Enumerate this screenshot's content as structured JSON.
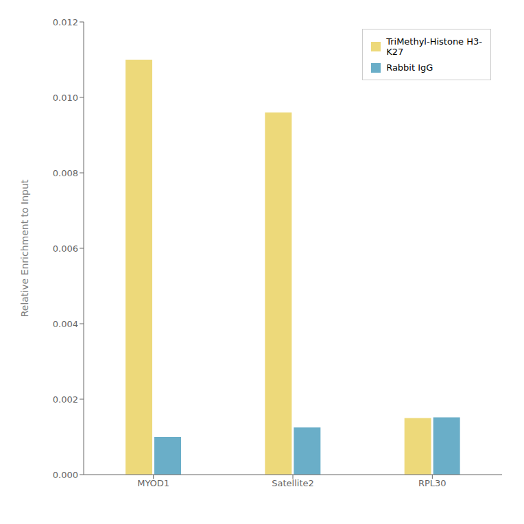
{
  "chart_data": {
    "type": "bar",
    "ylabel": "Relative Enrichment to Input",
    "categories": [
      "MYOD1",
      "Satellite2",
      "RPL30"
    ],
    "series": [
      {
        "name": "TriMethyl-Histone H3-\nK27",
        "color": "#EDD97A",
        "values": [
          0.011,
          0.0096,
          0.0015
        ]
      },
      {
        "name": "Rabbit IgG",
        "color": "#6AAEC8",
        "values": [
          0.001,
          0.00125,
          0.00152
        ]
      }
    ],
    "ylim": [
      0,
      0.012
    ],
    "yticks": [
      {
        "value": 0,
        "label": "0.000"
      },
      {
        "value": 0.002,
        "label": "0.002"
      },
      {
        "value": 0.004,
        "label": "0.004"
      },
      {
        "value": 0.006,
        "label": "0.006"
      },
      {
        "value": 0.008,
        "label": "0.008"
      },
      {
        "value": 0.01,
        "label": "0.010"
      },
      {
        "value": 0.012,
        "label": "0.012"
      }
    ],
    "grid": false,
    "legend": "upper right"
  }
}
